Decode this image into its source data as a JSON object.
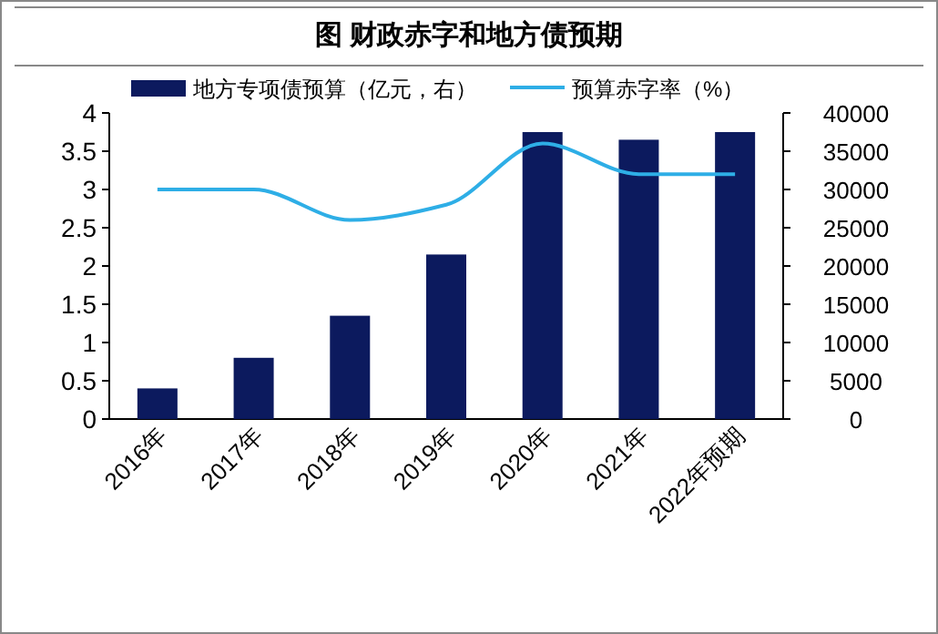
{
  "chart_data": {
    "type": "bar",
    "title": "图    财政赤字和地方债预期",
    "categories": [
      "2016年",
      "2017年",
      "2018年",
      "2019年",
      "2020年",
      "2021年",
      "2022年预期"
    ],
    "series": [
      {
        "name": "地方专项债预算（亿元，右）",
        "axis": "y2",
        "color": "#0c1a5e",
        "values": [
          4000,
          8000,
          13500,
          21500,
          37500,
          36500,
          37500
        ]
      },
      {
        "name": "预算赤字率（%）",
        "type": "line",
        "axis": "y",
        "color": "#2eaee6",
        "values": [
          3.0,
          3.0,
          2.6,
          2.8,
          3.6,
          3.2,
          3.2
        ]
      }
    ],
    "ylim": [
      0,
      4
    ],
    "yticks": [
      0,
      0.5,
      1,
      1.5,
      2,
      2.5,
      3,
      3.5,
      4
    ],
    "y2lim": [
      0,
      40000
    ],
    "y2ticks": [
      0,
      5000,
      10000,
      15000,
      20000,
      25000,
      30000,
      35000,
      40000
    ],
    "legend": "top",
    "marker": "none",
    "line_style": "solid"
  }
}
